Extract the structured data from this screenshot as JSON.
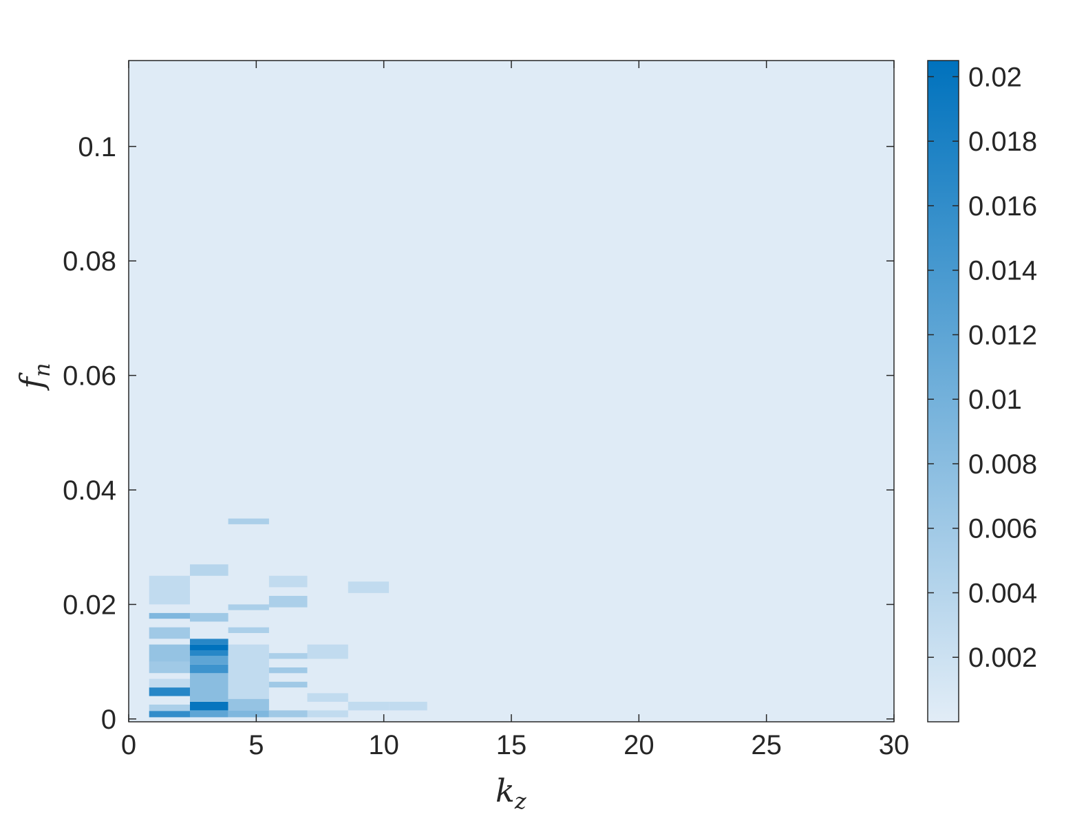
{
  "chart_data": {
    "type": "heatmap",
    "title": "",
    "xlabel": {
      "main": "k",
      "sub": "z"
    },
    "ylabel": {
      "main": "f",
      "sub": "n"
    },
    "xlim": [
      0,
      30
    ],
    "ylim": [
      -0.0005,
      0.115
    ],
    "xticks": [
      0,
      5,
      10,
      15,
      20,
      25,
      30
    ],
    "xtick_labels": [
      "0",
      "5",
      "10",
      "15",
      "20",
      "25",
      "30"
    ],
    "yticks": [
      0,
      0.02,
      0.04,
      0.06,
      0.08,
      0.1
    ],
    "ytick_labels": [
      "0",
      "0.02",
      "0.04",
      "0.06",
      "0.08",
      "0.1"
    ],
    "colorbar": {
      "min": 0.0,
      "max": 0.0205,
      "ticks": [
        0.002,
        0.004,
        0.006,
        0.008,
        0.01,
        0.012,
        0.014,
        0.016,
        0.018,
        0.02
      ],
      "tick_labels": [
        "0.002",
        "0.004",
        "0.006",
        "0.008",
        "0.01",
        "0.012",
        "0.014",
        "0.016",
        "0.018",
        "0.02"
      ],
      "color_low": "#e2edf7",
      "color_high": "#0072bd"
    },
    "background_value": 0.0003,
    "cells": [
      {
        "kz": [
          0.8,
          2.4
        ],
        "fn": [
          0.0003,
          0.0014
        ],
        "value": 0.016
      },
      {
        "kz": [
          0.8,
          2.4
        ],
        "fn": [
          0.0014,
          0.0025
        ],
        "value": 0.005
      },
      {
        "kz": [
          0.8,
          2.4
        ],
        "fn": [
          0.004,
          0.0055
        ],
        "value": 0.017
      },
      {
        "kz": [
          0.8,
          2.4
        ],
        "fn": [
          0.0055,
          0.007
        ],
        "value": 0.003
      },
      {
        "kz": [
          0.8,
          2.4
        ],
        "fn": [
          0.008,
          0.01
        ],
        "value": 0.006
      },
      {
        "kz": [
          0.8,
          2.4
        ],
        "fn": [
          0.01,
          0.013
        ],
        "value": 0.007
      },
      {
        "kz": [
          0.8,
          2.4
        ],
        "fn": [
          0.014,
          0.016
        ],
        "value": 0.006
      },
      {
        "kz": [
          0.8,
          2.4
        ],
        "fn": [
          0.0175,
          0.0185
        ],
        "value": 0.009
      },
      {
        "kz": [
          0.8,
          2.4
        ],
        "fn": [
          0.02,
          0.025
        ],
        "value": 0.003
      },
      {
        "kz": [
          2.4,
          3.9
        ],
        "fn": [
          0.0003,
          0.0015
        ],
        "value": 0.012
      },
      {
        "kz": [
          2.4,
          3.9
        ],
        "fn": [
          0.0015,
          0.003
        ],
        "value": 0.02
      },
      {
        "kz": [
          2.4,
          3.9
        ],
        "fn": [
          0.003,
          0.008
        ],
        "value": 0.008
      },
      {
        "kz": [
          2.4,
          3.9
        ],
        "fn": [
          0.008,
          0.0095
        ],
        "value": 0.015
      },
      {
        "kz": [
          2.4,
          3.9
        ],
        "fn": [
          0.0095,
          0.011
        ],
        "value": 0.012
      },
      {
        "kz": [
          2.4,
          3.9
        ],
        "fn": [
          0.011,
          0.012
        ],
        "value": 0.017
      },
      {
        "kz": [
          2.4,
          3.9
        ],
        "fn": [
          0.012,
          0.013
        ],
        "value": 0.021
      },
      {
        "kz": [
          2.4,
          3.9
        ],
        "fn": [
          0.013,
          0.014
        ],
        "value": 0.017
      },
      {
        "kz": [
          2.4,
          3.9
        ],
        "fn": [
          0.017,
          0.0185
        ],
        "value": 0.006
      },
      {
        "kz": [
          2.4,
          3.9
        ],
        "fn": [
          0.025,
          0.027
        ],
        "value": 0.004
      },
      {
        "kz": [
          3.9,
          5.5
        ],
        "fn": [
          0.0003,
          0.0015
        ],
        "value": 0.009
      },
      {
        "kz": [
          3.9,
          5.5
        ],
        "fn": [
          0.0015,
          0.0035
        ],
        "value": 0.007
      },
      {
        "kz": [
          3.9,
          5.5
        ],
        "fn": [
          0.0035,
          0.013
        ],
        "value": 0.003
      },
      {
        "kz": [
          3.9,
          5.5
        ],
        "fn": [
          0.015,
          0.016
        ],
        "value": 0.005
      },
      {
        "kz": [
          3.9,
          5.5
        ],
        "fn": [
          0.019,
          0.02
        ],
        "value": 0.005
      },
      {
        "kz": [
          3.9,
          5.5
        ],
        "fn": [
          0.034,
          0.035
        ],
        "value": 0.005
      },
      {
        "kz": [
          5.5,
          7.0
        ],
        "fn": [
          0.0003,
          0.0015
        ],
        "value": 0.006
      },
      {
        "kz": [
          5.5,
          7.0
        ],
        "fn": [
          0.0055,
          0.0065
        ],
        "value": 0.006
      },
      {
        "kz": [
          5.5,
          7.0
        ],
        "fn": [
          0.008,
          0.009
        ],
        "value": 0.006
      },
      {
        "kz": [
          5.5,
          7.0
        ],
        "fn": [
          0.0105,
          0.0115
        ],
        "value": 0.005
      },
      {
        "kz": [
          5.5,
          7.0
        ],
        "fn": [
          0.0195,
          0.0215
        ],
        "value": 0.005
      },
      {
        "kz": [
          5.5,
          7.0
        ],
        "fn": [
          0.023,
          0.025
        ],
        "value": 0.003
      },
      {
        "kz": [
          7.0,
          8.6
        ],
        "fn": [
          0.0003,
          0.0015
        ],
        "value": 0.003
      },
      {
        "kz": [
          7.0,
          8.6
        ],
        "fn": [
          0.003,
          0.0045
        ],
        "value": 0.003
      },
      {
        "kz": [
          7.0,
          8.6
        ],
        "fn": [
          0.0105,
          0.013
        ],
        "value": 0.003
      },
      {
        "kz": [
          8.6,
          10.2
        ],
        "fn": [
          0.0015,
          0.003
        ],
        "value": 0.003
      },
      {
        "kz": [
          8.6,
          10.2
        ],
        "fn": [
          0.022,
          0.024
        ],
        "value": 0.003
      },
      {
        "kz": [
          10.2,
          11.7
        ],
        "fn": [
          0.0015,
          0.003
        ],
        "value": 0.003
      }
    ]
  }
}
